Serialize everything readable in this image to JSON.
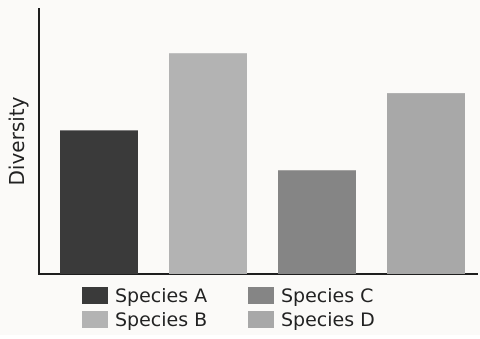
{
  "chart_data": {
    "type": "bar",
    "title": "",
    "xlabel": "",
    "ylabel": "Diversity",
    "categories": [
      "Species A",
      "Species B",
      "Species C",
      "Species D"
    ],
    "values": [
      54,
      83,
      39,
      68
    ],
    "ylim": [
      0,
      100
    ],
    "grid": false,
    "legend_position": "bottom",
    "colors": [
      "#3a3a3a",
      "#b3b3b3",
      "#858585",
      "#a8a8a8"
    ],
    "legend": [
      {
        "label": "Species A",
        "color": "#3a3a3a"
      },
      {
        "label": "Species C",
        "color": "#858585"
      },
      {
        "label": "Species B",
        "color": "#b3b3b3"
      },
      {
        "label": "Species D",
        "color": "#a8a8a8"
      }
    ]
  }
}
